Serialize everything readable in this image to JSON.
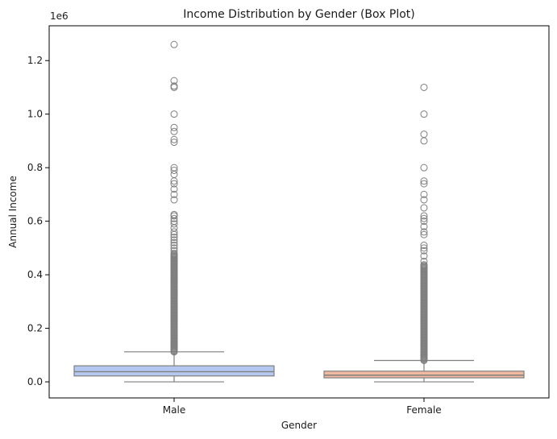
{
  "chart_data": {
    "type": "box",
    "title": "Income Distribution by Gender (Box Plot)",
    "xlabel": "Gender",
    "ylabel": "Annual Income",
    "y_offset_text": "1e6",
    "y_scale_factor": 1000000,
    "ylim": [
      -60000,
      1330000
    ],
    "y_ticks": [
      0.0,
      0.2,
      0.4,
      0.6,
      0.8,
      1.0,
      1.2
    ],
    "y_tick_labels": [
      "0.0",
      "0.2",
      "0.4",
      "0.6",
      "0.8",
      "1.0",
      "1.2"
    ],
    "categories": [
      "Male",
      "Female"
    ],
    "grid": false,
    "boxes": [
      {
        "category": "Male",
        "color": "#b4c8f0",
        "min": 0,
        "q1": 22000,
        "median": 38000,
        "q3": 60000,
        "whisker_high": 112000,
        "outliers_dense_range": [
          112000,
          480000
        ],
        "outliers": [
          490000,
          500000,
          510000,
          520000,
          530000,
          540000,
          550000,
          560000,
          575000,
          590000,
          600000,
          610000,
          620000,
          625000,
          680000,
          700000,
          720000,
          740000,
          750000,
          775000,
          790000,
          800000,
          895000,
          905000,
          935000,
          950000,
          1000000,
          1100000,
          1105000,
          1125000,
          1260000
        ]
      },
      {
        "category": "Female",
        "color": "#f0b9a0",
        "min": 0,
        "q1": 15000,
        "median": 25000,
        "q3": 40000,
        "whisker_high": 80000,
        "outliers_dense_range": [
          80000,
          440000
        ],
        "outliers": [
          450000,
          470000,
          490000,
          500000,
          510000,
          550000,
          560000,
          580000,
          600000,
          610000,
          620000,
          650000,
          680000,
          700000,
          740000,
          750000,
          800000,
          900000,
          925000,
          1000000,
          1100000
        ]
      }
    ],
    "box_edge_color": "#7f7f7f",
    "outlier_color": "#7f7f7f"
  }
}
